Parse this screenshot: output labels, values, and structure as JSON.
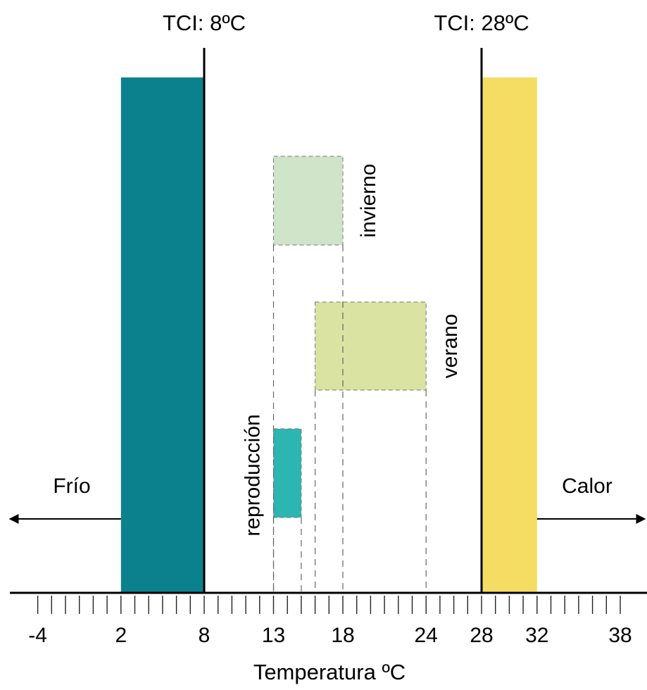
{
  "chart_data": {
    "type": "range-diagram",
    "xlabel": "Temperatura ºC",
    "tick_labels": [
      "-4",
      "2",
      "8",
      "13",
      "18",
      "24",
      "28",
      "32",
      "38"
    ],
    "tick_label_values": [
      -4,
      2,
      8,
      13,
      18,
      24,
      28,
      32,
      38
    ],
    "minor_tick_step": 1,
    "xlim": [
      -6,
      41
    ],
    "lci": {
      "label": "TCI: 8ºC",
      "value": 8
    },
    "uci": {
      "label": "TCI: 28ºC",
      "value": 28
    },
    "cold_zone": {
      "range": [
        2,
        8
      ],
      "color": "#0b818d"
    },
    "hot_zone": {
      "range": [
        28,
        32
      ],
      "color": "#f5dc62"
    },
    "ranges": [
      {
        "label": "invierno",
        "range": [
          13,
          18
        ],
        "color": "#cfe4c9"
      },
      {
        "label": "verano",
        "range": [
          16,
          24
        ],
        "color": "#dae3a2"
      },
      {
        "label": "reproducción",
        "range": [
          13,
          15
        ],
        "color": "#2db5b2"
      }
    ],
    "left_arrow_label": "Frío",
    "right_arrow_label": "Calor"
  }
}
